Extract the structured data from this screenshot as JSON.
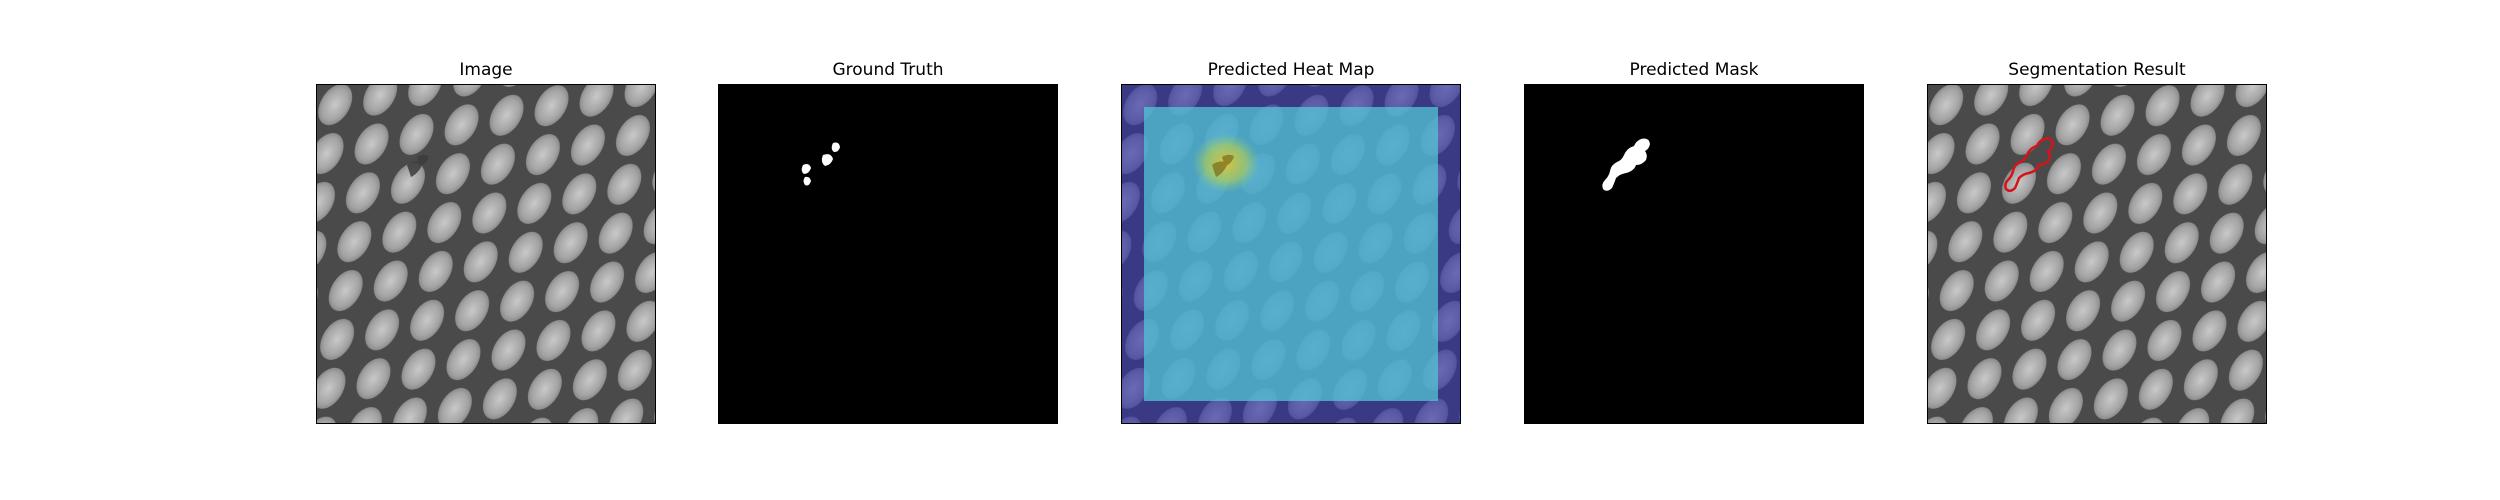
{
  "figure": {
    "panels": [
      {
        "key": "image",
        "title": "Image"
      },
      {
        "key": "ground_truth",
        "title": "Ground Truth"
      },
      {
        "key": "heatmap",
        "title": "Predicted Heat Map"
      },
      {
        "key": "mask",
        "title": "Predicted Mask"
      },
      {
        "key": "segmentation",
        "title": "Segmentation Result"
      }
    ]
  },
  "colors": {
    "background": "#ffffff",
    "mesh_background": "#5b5b5b",
    "mesh_cell": "#a9a9a9",
    "mask_background": "#000000",
    "mask_foreground": "#ffffff",
    "heatmap_low": "#2e2ea8",
    "heatmap_mid": "#53c6d6",
    "heatmap_high": "#d6c43a",
    "contour": "#d4141a"
  }
}
